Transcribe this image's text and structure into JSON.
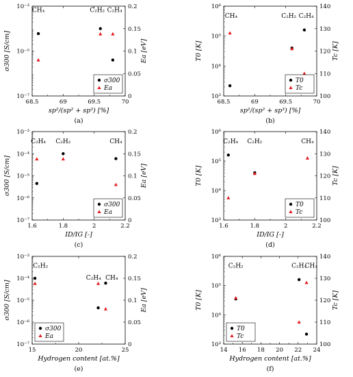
{
  "colors": {
    "black_marker": "#000000",
    "red_marker": "#e31a1c"
  },
  "chart_data": [
    {
      "type": "scatter",
      "panel_label": "(a)",
      "xlabel": "sp²/(sp² + sp³) [%]",
      "ylabel_left": "σ300 [S/cm]",
      "ylabel_right": "Ea [eV]",
      "xlim": [
        68.5,
        70
      ],
      "xticks": [
        68.5,
        69,
        69.5,
        70
      ],
      "xtick_labels": [
        "68.5",
        "69",
        "69.5",
        "70"
      ],
      "y_left_scale": "log",
      "y_left_lim": [
        1e-07,
        0.001
      ],
      "y_left_ticks": [
        1e-07,
        1e-05,
        0.001
      ],
      "y_left_tick_labels": [
        "10⁻⁷",
        "10⁻⁵",
        "10⁻³"
      ],
      "y_right_lim": [
        0,
        0.2
      ],
      "y_right_ticks": [
        0,
        0.05,
        0.1,
        0.15,
        0.2
      ],
      "y_right_tick_labels": [
        "0",
        "0.05",
        "0.1",
        "0.15",
        "0.2"
      ],
      "legend_position": "bottom-right",
      "series": [
        {
          "name": "σ300",
          "marker": "circle",
          "axis": "left",
          "x": [
            68.6,
            69.6,
            69.8
          ],
          "y": [
            6e-05,
            0.0001,
            4e-06
          ]
        },
        {
          "name": "Ea",
          "marker": "triangle",
          "axis": "right",
          "x": [
            68.6,
            69.6,
            69.8
          ],
          "y": [
            0.08,
            0.138,
            0.138
          ]
        }
      ],
      "annotations": [
        {
          "text": "CH₄",
          "x": 68.6,
          "y_frac": 0.935
        },
        {
          "text": "C₂H₂",
          "x": 69.55,
          "y_frac": 0.935
        },
        {
          "text": "C₂H₄",
          "x": 69.83,
          "y_frac": 0.935
        }
      ]
    },
    {
      "type": "scatter",
      "panel_label": "(b)",
      "xlabel": "sp²/(sp² + sp³) [%]",
      "ylabel_left": "T0 [K]",
      "ylabel_right": "Tc [K]",
      "xlim": [
        68.5,
        70
      ],
      "xticks": [
        68.5,
        69,
        69.5,
        70
      ],
      "xtick_labels": [
        "68.5",
        "69",
        "69.5",
        "70"
      ],
      "y_left_scale": "log",
      "y_left_lim": [
        1000.0,
        1000000.0
      ],
      "y_left_ticks": [
        1000.0,
        10000.0,
        100000.0,
        1000000.0
      ],
      "y_left_tick_labels": [
        "10³",
        "10⁴",
        "10⁵",
        "10⁶"
      ],
      "y_right_lim": [
        100,
        140
      ],
      "y_right_ticks": [
        100,
        110,
        120,
        130,
        140
      ],
      "y_right_tick_labels": [
        "100",
        "110",
        "120",
        "130",
        "140"
      ],
      "legend_position": "bottom-right",
      "series": [
        {
          "name": "T0",
          "marker": "circle",
          "axis": "left",
          "x": [
            68.6,
            69.6,
            69.8
          ],
          "y": [
            2200.0,
            40000.0,
            160000.0
          ]
        },
        {
          "name": "Tc",
          "marker": "triangle",
          "axis": "right",
          "x": [
            68.6,
            69.6,
            69.8
          ],
          "y": [
            128,
            121,
            110
          ]
        }
      ],
      "annotations": [
        {
          "text": "CH₄",
          "x": 68.62,
          "y_frac": 0.87
        },
        {
          "text": "C₂H₂",
          "x": 69.55,
          "y_frac": 0.87
        },
        {
          "text": "C₂H₄",
          "x": 69.83,
          "y_frac": 0.87
        }
      ]
    },
    {
      "type": "scatter",
      "panel_label": "(c)",
      "xlabel": "ID/IG [-]",
      "ylabel_left": "σ300 [S/cm]",
      "ylabel_right": "Ea [eV]",
      "xlim": [
        1.6,
        2.2
      ],
      "xticks": [
        1.6,
        1.8,
        2,
        2.2
      ],
      "xtick_labels": [
        "1.6",
        "1.8",
        "2",
        "2.2"
      ],
      "y_left_scale": "log",
      "y_left_lim": [
        1e-07,
        0.001
      ],
      "y_left_ticks": [
        1e-07,
        1e-06,
        1e-05,
        0.0001,
        0.001
      ],
      "y_left_tick_labels": [
        "10⁻⁷",
        "10⁻⁶",
        "10⁻⁵",
        "10⁻⁴",
        "10⁻³"
      ],
      "y_right_lim": [
        0,
        0.2
      ],
      "y_right_ticks": [
        0,
        0.05,
        0.1,
        0.15,
        0.2
      ],
      "y_right_tick_labels": [
        "0",
        "0.05",
        "0.1",
        "0.15",
        "0.2"
      ],
      "legend_position": "bottom-right",
      "series": [
        {
          "name": "σ300",
          "marker": "circle",
          "axis": "left",
          "x": [
            1.63,
            1.8,
            2.14
          ],
          "y": [
            4.5e-06,
            0.0001,
            6e-05
          ]
        },
        {
          "name": "Ea",
          "marker": "triangle",
          "axis": "right",
          "x": [
            1.63,
            1.8,
            2.14
          ],
          "y": [
            0.138,
            0.138,
            0.08
          ]
        }
      ],
      "annotations": [
        {
          "text": "C₂H₄",
          "x": 1.64,
          "y_frac": 0.87
        },
        {
          "text": "C₂H₂",
          "x": 1.8,
          "y_frac": 0.87
        },
        {
          "text": "CH₄",
          "x": 2.14,
          "y_frac": 0.87
        }
      ]
    },
    {
      "type": "scatter",
      "panel_label": "(d)",
      "xlabel": "ID/IG [-]",
      "ylabel_left": "T0 [K]",
      "ylabel_right": "Tc [K]",
      "xlim": [
        1.6,
        2.2
      ],
      "xticks": [
        1.6,
        1.8,
        2,
        2.2
      ],
      "xtick_labels": [
        "1.6",
        "1.8",
        "2",
        "2.2"
      ],
      "y_left_scale": "log",
      "y_left_lim": [
        1000.0,
        1000000.0
      ],
      "y_left_ticks": [
        1000.0,
        10000.0,
        100000.0,
        1000000.0
      ],
      "y_left_tick_labels": [
        "10³",
        "10⁴",
        "10⁵",
        "10⁶"
      ],
      "y_right_lim": [
        100,
        140
      ],
      "y_right_ticks": [
        100,
        110,
        120,
        130,
        140
      ],
      "y_right_tick_labels": [
        "100",
        "110",
        "120",
        "130",
        "140"
      ],
      "legend_position": "bottom-right",
      "series": [
        {
          "name": "T0",
          "marker": "circle",
          "axis": "left",
          "x": [
            1.63,
            1.8,
            2.14
          ],
          "y": [
            160000.0,
            40000.0,
            2200.0
          ]
        },
        {
          "name": "Tc",
          "marker": "triangle",
          "axis": "right",
          "x": [
            1.63,
            1.8,
            2.14
          ],
          "y": [
            110,
            121,
            128
          ]
        }
      ],
      "annotations": [
        {
          "text": "C₂H₄",
          "x": 1.645,
          "y_frac": 0.87
        },
        {
          "text": "C₂H₂",
          "x": 1.8,
          "y_frac": 0.87
        },
        {
          "text": "CH₄",
          "x": 2.14,
          "y_frac": 0.87
        }
      ]
    },
    {
      "type": "scatter",
      "panel_label": "(e)",
      "xlabel": "Hydrogen content [at.%]",
      "ylabel_left": "σ300 [S/cm]",
      "ylabel_right": "Ea [eV]",
      "xlim": [
        15,
        25
      ],
      "xticks": [
        15,
        20,
        25
      ],
      "xtick_labels": [
        "15",
        "20",
        "25"
      ],
      "y_left_scale": "log",
      "y_left_lim": [
        1e-07,
        0.001
      ],
      "y_left_ticks": [
        1e-07,
        1e-06,
        1e-05,
        0.0001,
        0.001
      ],
      "y_left_tick_labels": [
        "10⁻⁷",
        "10⁻⁶",
        "10⁻⁵",
        "10⁻⁴",
        "10⁻³"
      ],
      "y_right_lim": [
        0,
        0.2
      ],
      "y_right_ticks": [
        0,
        0.05,
        0.1,
        0.15,
        0.2
      ],
      "y_right_tick_labels": [
        "0",
        "0.05",
        "0.1",
        "0.15",
        "0.2"
      ],
      "legend_position": "bottom-left",
      "series": [
        {
          "name": "σ300",
          "marker": "circle",
          "axis": "left",
          "x": [
            15.3,
            22.1,
            22.9
          ],
          "y": [
            0.0001,
            4.5e-06,
            6e-05
          ]
        },
        {
          "name": "Ea",
          "marker": "triangle",
          "axis": "right",
          "x": [
            15.3,
            22.1,
            22.9
          ],
          "y": [
            0.138,
            0.138,
            0.08
          ]
        }
      ],
      "annotations": [
        {
          "text": "C₂H₂",
          "x": 15.9,
          "y_frac": 0.87
        },
        {
          "text": "C₂H₄",
          "x": 21.6,
          "y_frac": 0.735
        },
        {
          "text": "CH₄",
          "x": 23.55,
          "y_frac": 0.735
        }
      ]
    },
    {
      "type": "scatter",
      "panel_label": "(f)",
      "xlabel": "Hydrogen content [at.%]",
      "ylabel_left": "T0 [K]",
      "ylabel_right": "Tc [K]",
      "xlim": [
        14,
        24
      ],
      "xticks": [
        14,
        16,
        18,
        20,
        22,
        24
      ],
      "xtick_labels": [
        "14",
        "16",
        "18",
        "20",
        "22",
        "24"
      ],
      "y_left_scale": "log",
      "y_left_lim": [
        1000.0,
        1000000.0
      ],
      "y_left_ticks": [
        1000.0,
        10000.0,
        100000.0,
        1000000.0
      ],
      "y_left_tick_labels": [
        "10³",
        "10⁴",
        "10⁵",
        "10⁶"
      ],
      "y_right_lim": [
        100,
        140
      ],
      "y_right_ticks": [
        100,
        110,
        120,
        130,
        140
      ],
      "y_right_tick_labels": [
        "100",
        "110",
        "120",
        "130",
        "140"
      ],
      "legend_position": "bottom-left",
      "series": [
        {
          "name": "T0",
          "marker": "circle",
          "axis": "left",
          "x": [
            15.3,
            22.1,
            22.9
          ],
          "y": [
            35000.0,
            160000.0,
            2200.0
          ]
        },
        {
          "name": "Tc",
          "marker": "triangle",
          "axis": "right",
          "x": [
            15.3,
            22.1,
            22.9
          ],
          "y": [
            121,
            110,
            128
          ]
        }
      ],
      "annotations": [
        {
          "text": "C₂H₂",
          "x": 15.3,
          "y_frac": 0.87
        },
        {
          "text": "C₂H₄",
          "x": 22.1,
          "y_frac": 0.87
        },
        {
          "text": "CH₄",
          "x": 23.4,
          "y_frac": 0.87
        }
      ]
    }
  ]
}
